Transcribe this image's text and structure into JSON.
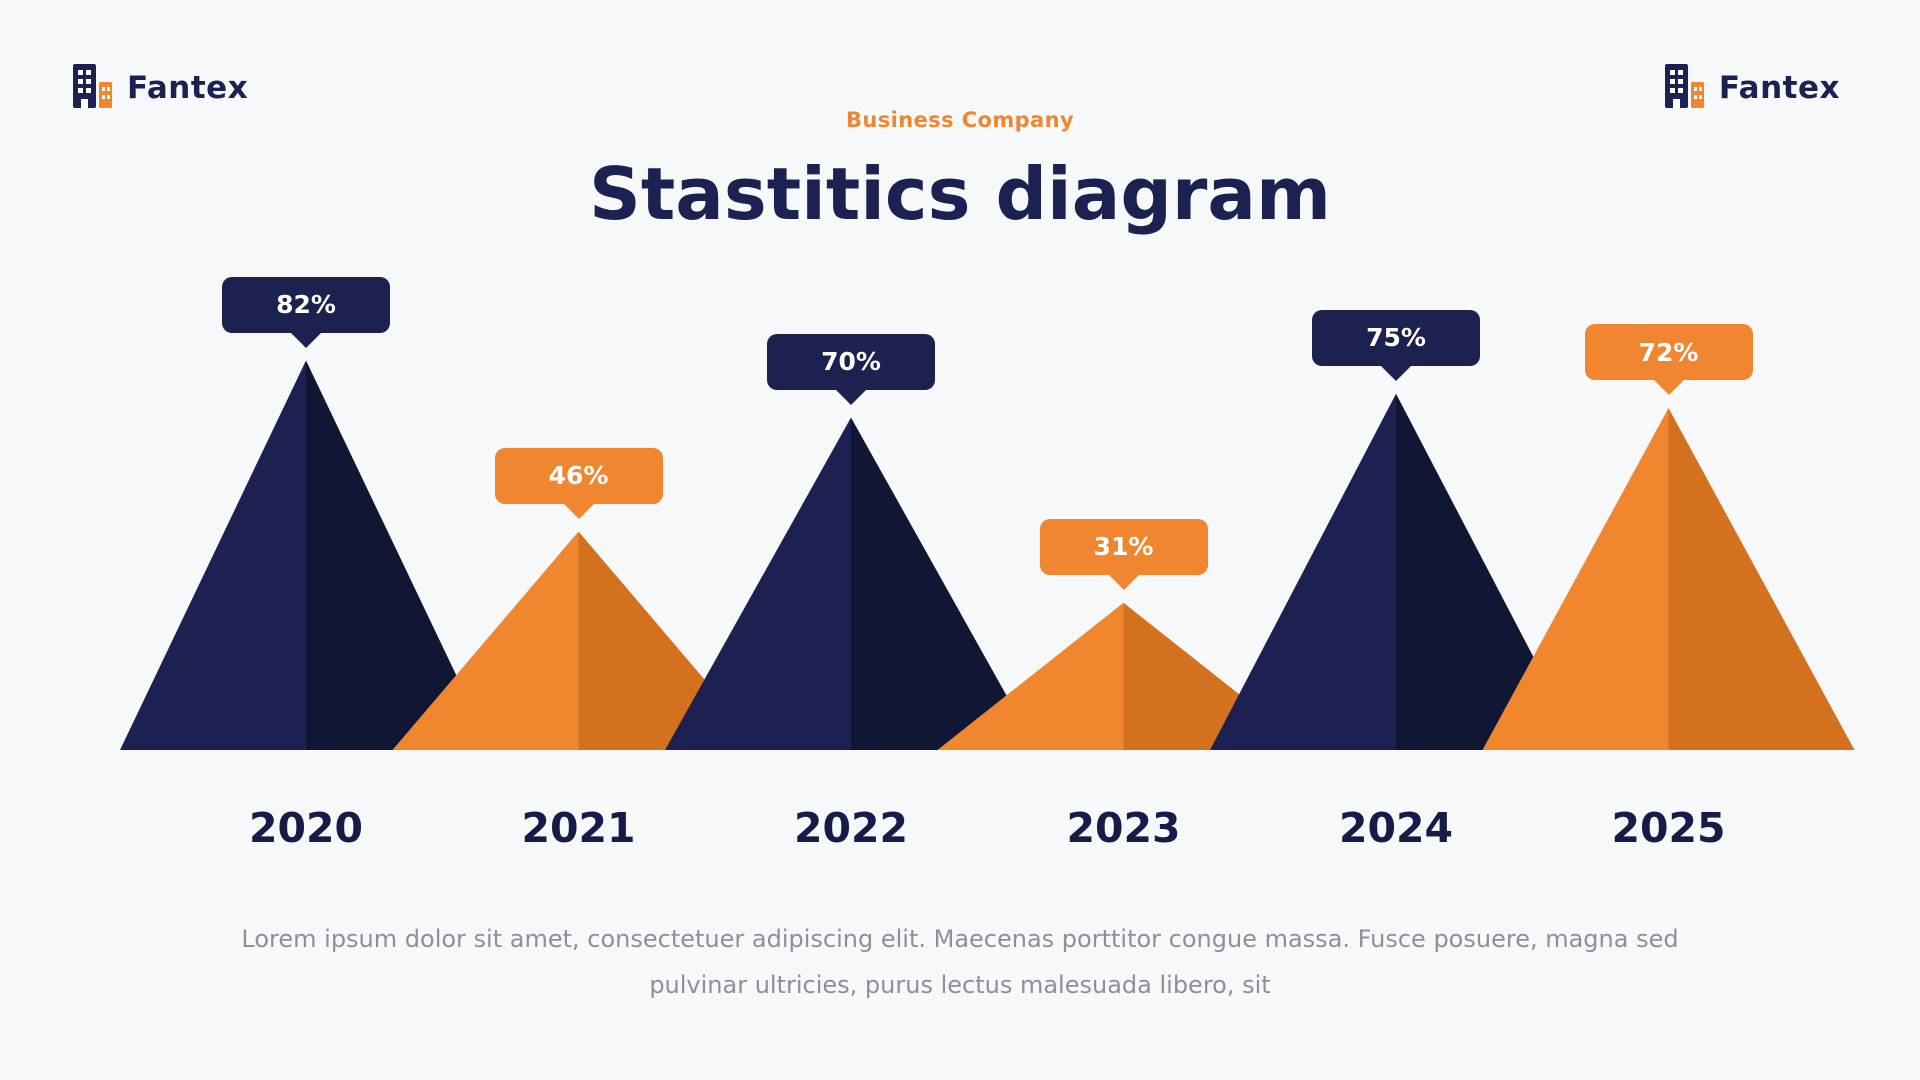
{
  "page": {
    "background": "#f7f8fa",
    "brand": {
      "name": "Fantex",
      "navy": "#1b2150",
      "orange": "#f0862f"
    },
    "subtitle": "Business Company",
    "title": "Stastitics diagram",
    "footer": {
      "line1": "Lorem ipsum dolor sit amet, consectetuer adipiscing elit. Maecenas porttitor congue massa. Fusce posuere, magna sed",
      "line2": "pulvinar ultricies, purus lectus malesuada libero, sit"
    }
  },
  "chart_data": {
    "type": "bar",
    "variant": "triangle-peaks",
    "title": "Stastitics diagram",
    "xlabel": "",
    "ylabel": "",
    "unit": "%",
    "ylim": [
      0,
      100
    ],
    "grid": false,
    "legend": "none",
    "categories": [
      "2020",
      "2021",
      "2022",
      "2023",
      "2024",
      "2025"
    ],
    "values": [
      82,
      46,
      70,
      31,
      75,
      72
    ],
    "labels": [
      "82%",
      "46%",
      "70%",
      "31%",
      "75%",
      "72%"
    ],
    "colors": [
      "navy",
      "orange",
      "navy",
      "orange",
      "navy",
      "orange"
    ],
    "palette": {
      "navy": {
        "light": "#1d2152",
        "dark": "#121635",
        "badge": "#1c2150"
      },
      "orange": {
        "light": "#f0862e",
        "dark": "#d4711f",
        "badge": "#f0862f"
      }
    },
    "label_text_color": "#ffffff",
    "year_text_color": "#161b47"
  }
}
